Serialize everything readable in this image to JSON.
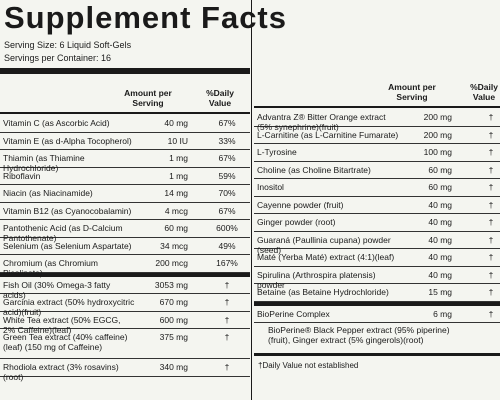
{
  "title": "Supplement Facts",
  "serving_size": "Serving Size: 6 Liquid Soft-Gels",
  "servings_per_container": "Servings per Container: 16",
  "left_table": {
    "headers": [
      "Amount per Serving",
      "%Daily Value"
    ],
    "rows": [
      [
        "Vitamin C (as Ascorbic Acid)",
        "40 mg",
        "67%"
      ],
      [
        "Vitamin E (as d-Alpha Tocopherol)",
        "10 IU",
        "33%"
      ],
      [
        "Thiamin (as Thiamine Hydrochloride)",
        "1 mg",
        "67%"
      ],
      [
        "Riboflavin",
        "1 mg",
        "59%"
      ],
      [
        "Niacin (as Niacinamide)",
        "14 mg",
        "70%"
      ],
      [
        "Vitamin B12 (as Cyanocobalamin)",
        "4 mcg",
        "67%"
      ],
      [
        "Pantothenic Acid (as D-Calcium Pantothenate)",
        "60 mg",
        "600%"
      ],
      [
        "Selenium (as Selenium Aspartate)",
        "34 mcg",
        "49%"
      ],
      [
        "Chromium (as Chromium Picolinate)",
        "200 mcg",
        "167%"
      ],
      [
        "Fish Oil (30% Omega-3 fatty acids)",
        "3053 mg",
        "†"
      ],
      [
        "Garcinia extract (50% hydroxycitric acid)(fruit)",
        "670 mg",
        "†"
      ],
      [
        "White Tea extract (50% EGCG, 2% Caffeine)(leaf)",
        "600 mg",
        "†"
      ],
      [
        "Green Tea extract (40% caffeine)(leaf) (150 mg of Caffeine)",
        "375 mg",
        "†"
      ],
      [
        "Rhodiola extract (3% rosavins)(root)",
        "340 mg",
        "†"
      ]
    ]
  },
  "right_table": {
    "headers": [
      "Amount per Serving",
      "%Daily Value"
    ],
    "rows": [
      [
        "Advantra Z® Bitter Orange extract (5% synephrine)(fruit)",
        "200 mg",
        "†"
      ],
      [
        "L-Carnitine (as L-Carnitine Fumarate)",
        "200 mg",
        "†"
      ],
      [
        "L-Tyrosine",
        "100 mg",
        "†"
      ],
      [
        "Choline (as Choline Bitartrate)",
        "60 mg",
        "†"
      ],
      [
        "Inositol",
        "60 mg",
        "†"
      ],
      [
        "Cayenne powder (fruit)",
        "40 mg",
        "†"
      ],
      [
        "Ginger powder (root)",
        "40 mg",
        "†"
      ],
      [
        "Guaraná (Paullinia cupana) powder (seed)",
        "40 mg",
        "†"
      ],
      [
        "Maté (Yerba Maté) extract (4:1)(leaf)",
        "40 mg",
        "†"
      ],
      [
        "Spirulina (Arthrospira platensis) powder",
        "40 mg",
        "†"
      ],
      [
        "Betaine (as Betaine Hydrochloride)",
        "15 mg",
        "†"
      ],
      [
        "BioPerine Complex",
        "6 mg",
        "†"
      ]
    ],
    "complex_detail": "BioPerine® Black Pepper extract (95% piperine)(fruit), Ginger extract (5% gingerols)(root)",
    "footnote": "†Daily Value not established"
  }
}
